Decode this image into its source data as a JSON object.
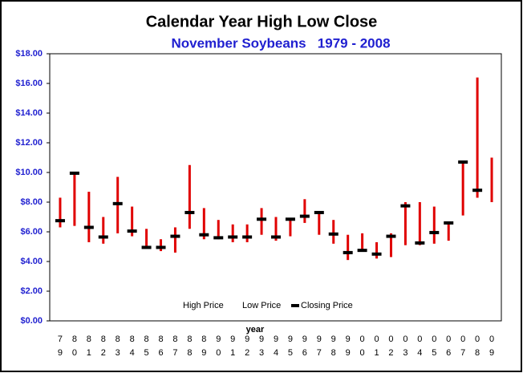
{
  "chart_data": {
    "type": "hlc",
    "title": "Calendar Year High Low Close",
    "subtitle": "November Soybeans   1979 - 2008",
    "xlabel": "year",
    "categories": [
      "79",
      "80",
      "81",
      "82",
      "83",
      "84",
      "85",
      "86",
      "87",
      "88",
      "89",
      "90",
      "91",
      "92",
      "93",
      "94",
      "95",
      "96",
      "97",
      "98",
      "99",
      "00",
      "01",
      "02",
      "03",
      "04",
      "05",
      "06",
      "07",
      "08",
      "09"
    ],
    "series": [
      {
        "name": "High Price",
        "color": "#e00000",
        "values": [
          8.3,
          9.95,
          8.7,
          7.0,
          9.7,
          7.7,
          6.2,
          5.5,
          6.3,
          10.5,
          7.6,
          6.8,
          6.5,
          6.5,
          7.6,
          7.0,
          6.9,
          8.2,
          7.3,
          6.8,
          5.8,
          5.9,
          5.3,
          5.9,
          8.0,
          8.0,
          7.7,
          6.6,
          10.7,
          16.4,
          11.0
        ]
      },
      {
        "name": "Low Price",
        "color": "#e00000",
        "values": [
          6.3,
          6.4,
          5.3,
          5.2,
          5.9,
          5.7,
          4.9,
          4.7,
          4.6,
          6.2,
          5.5,
          5.5,
          5.3,
          5.3,
          5.8,
          5.4,
          5.7,
          6.6,
          5.8,
          5.2,
          4.1,
          4.7,
          4.2,
          4.3,
          5.1,
          5.1,
          5.2,
          5.4,
          7.1,
          8.3,
          8.0
        ]
      },
      {
        "name": "Closing Price",
        "color": "#000000",
        "values": [
          6.75,
          9.95,
          6.3,
          5.65,
          7.9,
          6.05,
          4.95,
          4.95,
          5.7,
          7.3,
          5.8,
          5.6,
          5.65,
          5.65,
          6.85,
          5.65,
          6.85,
          7.05,
          7.3,
          5.85,
          4.6,
          4.75,
          4.5,
          5.7,
          7.75,
          5.25,
          5.95,
          6.6,
          10.7,
          8.8,
          null
        ]
      }
    ],
    "ylim": [
      0,
      18
    ],
    "yticks": [
      {
        "value": 0,
        "label": "$0.00"
      },
      {
        "value": 2,
        "label": "$2.00"
      },
      {
        "value": 4,
        "label": "$4.00"
      },
      {
        "value": 6,
        "label": "$6.00"
      },
      {
        "value": 8,
        "label": "$8.00"
      },
      {
        "value": 10,
        "label": "$10.00"
      },
      {
        "value": 12,
        "label": "$12.00"
      },
      {
        "value": 14,
        "label": "$14.00"
      },
      {
        "value": 16,
        "label": "$16.00"
      },
      {
        "value": 18,
        "label": "$18.00"
      }
    ]
  }
}
